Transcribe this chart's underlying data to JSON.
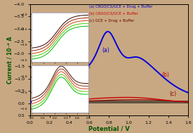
{
  "background_color": "#c8a882",
  "xlim": [
    0.0,
    1.6
  ],
  "ylim": [
    0.5,
    -4.0
  ],
  "xlabel": "Potential / V",
  "ylabel": "Current / 10⁻⁴ A",
  "xlabel_color": "#005500",
  "ylabel_color": "#005500",
  "legend": [
    {
      "label": "(a) CRGO/CS/GCE + Drug + Buffer",
      "color": "#0000cc"
    },
    {
      "label": "(b) CRGO/CS/GCE + Buffer",
      "color": "#cc0000"
    },
    {
      "label": "(c) GCE + Drug + Buffer",
      "color": "#660000"
    }
  ],
  "curve_a_color": "#0000dd",
  "curve_b_color": "#cc0000",
  "curve_c_color": "#8B0000",
  "inset_colors_top": [
    "#00bb00",
    "#44cc00",
    "#cc4400",
    "#992200",
    "#330000"
  ],
  "inset_colors_bot": [
    "#00bb00",
    "#55cc00",
    "#dd4422",
    "#993311",
    "#441100"
  ]
}
